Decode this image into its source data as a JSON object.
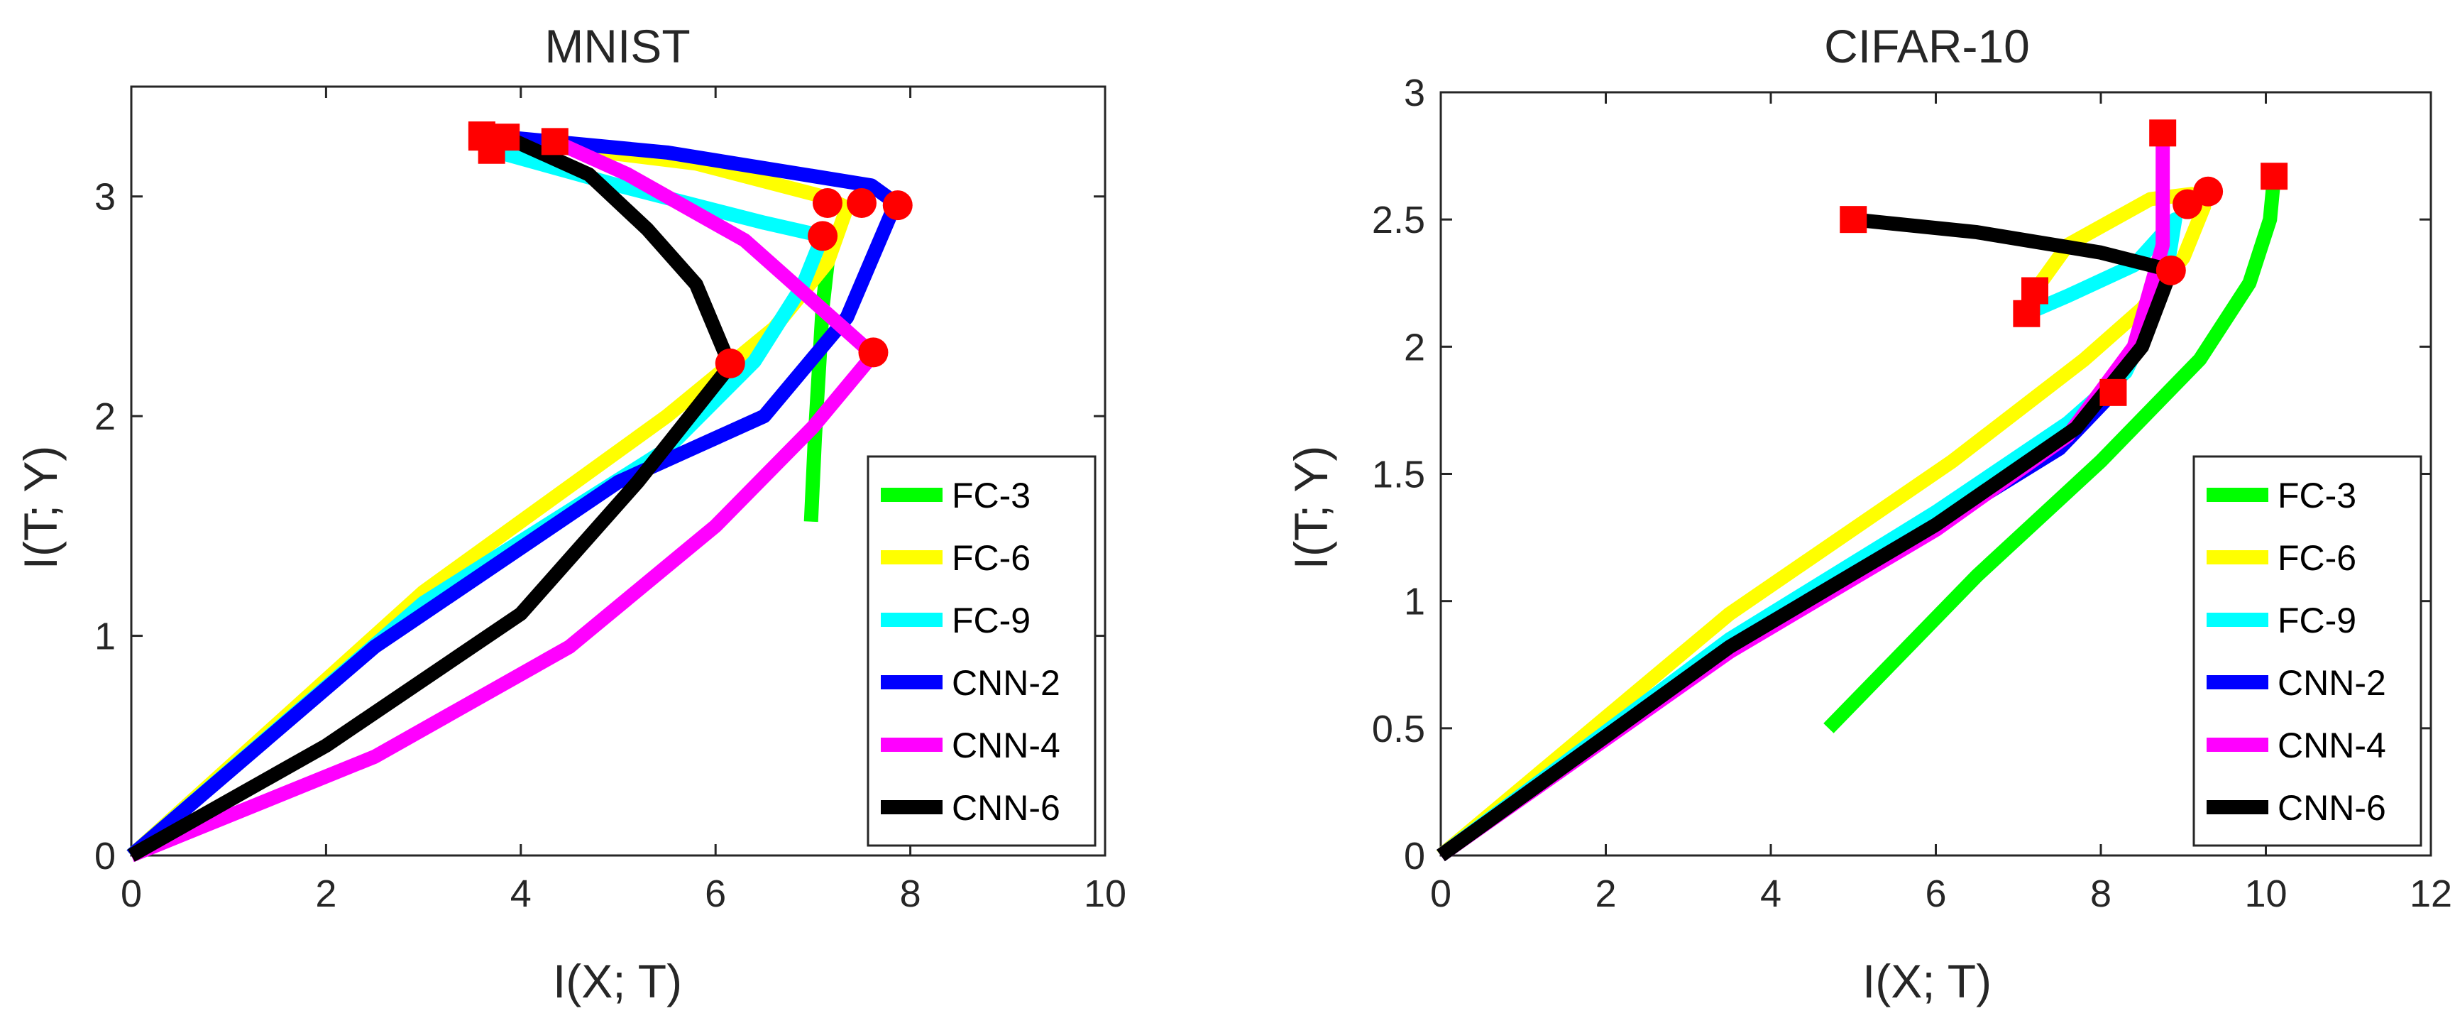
{
  "chart_data": [
    {
      "type": "line",
      "title": "MNIST",
      "xlabel": "I(X; T)",
      "ylabel": "I(T; Y)",
      "xlim": [
        0,
        10
      ],
      "ylim": [
        0,
        3.5
      ],
      "xticks": [
        "0",
        "2",
        "4",
        "6",
        "8",
        "10"
      ],
      "yticks": [
        "0",
        "1",
        "2",
        "3"
      ],
      "xtick_values": [
        0,
        2,
        4,
        6,
        8,
        10
      ],
      "ytick_values": [
        0,
        1,
        2,
        3
      ],
      "grid": false,
      "legend_position": "bottom-right",
      "series": [
        {
          "name": "FC-3",
          "color": "#00ff00",
          "x": [
            6.98,
            7.02,
            7.06,
            7.1,
            7.15
          ],
          "y": [
            1.52,
            1.9,
            2.2,
            2.5,
            2.7
          ],
          "circle": null,
          "square": null
        },
        {
          "name": "FC-6",
          "color": "#ffff00",
          "x": [
            0,
            3.0,
            5.5,
            6.6,
            7.15,
            7.35,
            7.1,
            5.8,
            3.6
          ],
          "y": [
            0,
            1.2,
            2.0,
            2.4,
            2.7,
            2.95,
            3.0,
            3.15,
            3.27
          ],
          "circle": [
            7.15,
            2.97
          ],
          "square": [
            3.6,
            3.27
          ]
        },
        {
          "name": "FC-9",
          "color": "#00ffff",
          "x": [
            0,
            3.0,
            5.5,
            6.4,
            6.9,
            7.1,
            6.5,
            5.0,
            3.7
          ],
          "y": [
            0,
            1.15,
            1.85,
            2.25,
            2.6,
            2.82,
            2.88,
            3.05,
            3.21
          ],
          "circle": [
            7.1,
            2.82
          ],
          "square": [
            3.7,
            3.21
          ]
        },
        {
          "name": "CNN-2",
          "color": "#0000ff",
          "x": [
            0,
            2.5,
            5.0,
            6.5,
            7.35,
            7.85,
            7.6,
            5.5,
            3.6
          ],
          "y": [
            0,
            0.95,
            1.7,
            2.0,
            2.45,
            2.97,
            3.05,
            3.2,
            3.28
          ],
          "circle": [
            7.87,
            2.96
          ],
          "square": [
            3.6,
            3.28
          ]
        },
        {
          "name": "CNN-4",
          "color": "#ff00ff",
          "x": [
            0,
            2.5,
            4.5,
            6.0,
            7.0,
            7.62,
            6.3,
            5.1,
            4.35
          ],
          "y": [
            0,
            0.45,
            0.95,
            1.5,
            1.95,
            2.28,
            2.8,
            3.1,
            3.25
          ],
          "circle": [
            7.62,
            2.29
          ],
          "square": [
            4.35,
            3.25
          ]
        },
        {
          "name": "CNN-6",
          "color": "#000000",
          "x": [
            0,
            2.0,
            4.0,
            5.2,
            6.15,
            5.8,
            5.3,
            4.7,
            3.85
          ],
          "y": [
            0,
            0.5,
            1.1,
            1.7,
            2.23,
            2.6,
            2.85,
            3.1,
            3.27
          ],
          "circle": [
            6.15,
            2.24
          ],
          "square": [
            3.85,
            3.27
          ]
        }
      ],
      "extra_markers": {
        "circles": [
          [
            7.5,
            2.97
          ]
        ],
        "squares": []
      }
    },
    {
      "type": "line",
      "title": "CIFAR-10",
      "xlabel": "I(X; T)",
      "ylabel": "I(T; Y)",
      "xlim": [
        0,
        12
      ],
      "ylim": [
        0,
        3
      ],
      "xticks": [
        "0",
        "2",
        "4",
        "6",
        "8",
        "10",
        "12"
      ],
      "yticks": [
        "0",
        "0.5",
        "1",
        "1.5",
        "2",
        "2.5",
        "3"
      ],
      "xtick_values": [
        0,
        2,
        4,
        6,
        8,
        10,
        12
      ],
      "ytick_values": [
        0,
        0.5,
        1,
        1.5,
        2,
        2.5,
        3
      ],
      "grid": false,
      "legend_position": "bottom-right",
      "series": [
        {
          "name": "FC-3",
          "color": "#00ff00",
          "x": [
            4.7,
            6.5,
            8.0,
            9.2,
            9.8,
            10.05,
            10.1
          ],
          "y": [
            0.5,
            1.1,
            1.55,
            1.95,
            2.25,
            2.5,
            2.67
          ],
          "circle": null,
          "square": [
            10.1,
            2.67
          ]
        },
        {
          "name": "FC-6",
          "color": "#ffff00",
          "x": [
            0,
            3.5,
            6.2,
            7.8,
            8.5,
            9.0,
            9.25,
            9.1,
            8.6,
            7.6,
            7.2
          ],
          "y": [
            0,
            0.95,
            1.55,
            1.95,
            2.15,
            2.35,
            2.55,
            2.6,
            2.58,
            2.4,
            2.22
          ],
          "circle": [
            9.05,
            2.56
          ],
          "square": [
            7.2,
            2.22
          ]
        },
        {
          "name": "FC-9",
          "color": "#00ffff",
          "x": [
            0,
            3.5,
            6.0,
            7.6,
            8.3,
            8.6,
            8.8,
            8.9,
            8.4,
            7.6,
            7.1
          ],
          "y": [
            0,
            0.85,
            1.35,
            1.7,
            1.9,
            2.1,
            2.3,
            2.5,
            2.32,
            2.2,
            2.13
          ],
          "circle": [
            9.3,
            2.61
          ],
          "square": [
            7.1,
            2.13
          ]
        },
        {
          "name": "CNN-2",
          "color": "#0000ff",
          "x": [
            0,
            3.5,
            6.0,
            7.5,
            8.15
          ],
          "y": [
            0,
            0.82,
            1.3,
            1.6,
            1.82
          ],
          "circle": null,
          "square": [
            8.15,
            1.82
          ]
        },
        {
          "name": "CNN-4",
          "color": "#ff00ff",
          "x": [
            0,
            3.5,
            6.0,
            7.6,
            8.4,
            8.75,
            8.75
          ],
          "y": [
            0,
            0.8,
            1.28,
            1.65,
            2.0,
            2.4,
            2.84
          ],
          "circle": null,
          "square": [
            8.75,
            2.84
          ]
        },
        {
          "name": "CNN-6",
          "color": "#000000",
          "x": [
            0,
            3.5,
            6.0,
            7.7,
            8.5,
            8.85,
            8.0,
            6.5,
            5.0
          ],
          "y": [
            0,
            0.82,
            1.3,
            1.68,
            2.0,
            2.3,
            2.37,
            2.45,
            2.5
          ],
          "circle": [
            8.85,
            2.3
          ],
          "square": [
            5.0,
            2.5
          ]
        }
      ],
      "extra_markers": {
        "circles": [],
        "squares": []
      }
    }
  ]
}
